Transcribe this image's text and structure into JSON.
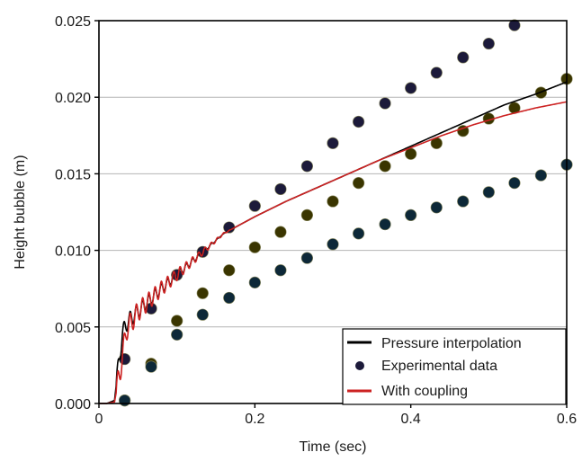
{
  "chart_data": {
    "type": "line",
    "xlabel": "Time (sec)",
    "ylabel": "Height bubble (m)",
    "xlim": [
      0,
      0.6
    ],
    "ylim": [
      0,
      0.025
    ],
    "x_ticks": [
      "0",
      "0.2",
      "0.4",
      "0.6"
    ],
    "y_ticks": [
      "0.000",
      "0.005",
      "0.010",
      "0.015",
      "0.020",
      "0.025"
    ],
    "grid": "horizontal",
    "legend_position": "bottom-right",
    "legend": [
      {
        "label": "Pressure interpolation",
        "style": "line",
        "color": "#000000"
      },
      {
        "label": "Experimental data",
        "style": "marker",
        "color": "#1c1a3a"
      },
      {
        "label": "With coupling",
        "style": "line",
        "color": "#cc2222"
      }
    ],
    "series": [
      {
        "name": "Pressure interpolation",
        "kind": "line",
        "color": "#000000",
        "oscillation": {
          "amplitude": 0.0006,
          "until": 0.16,
          "period": 0.008
        },
        "x": [
          0.0,
          0.01,
          0.02,
          0.025,
          0.03,
          0.035,
          0.04,
          0.05,
          0.06,
          0.07,
          0.08,
          0.1,
          0.12,
          0.14,
          0.16,
          0.2,
          0.24,
          0.28,
          0.32,
          0.36,
          0.4,
          0.44,
          0.48,
          0.52,
          0.56,
          0.6
        ],
        "y": [
          0.0,
          0.0,
          0.0002,
          0.0025,
          0.0045,
          0.0052,
          0.0055,
          0.006,
          0.0065,
          0.007,
          0.0075,
          0.0084,
          0.0093,
          0.0102,
          0.0111,
          0.0122,
          0.0132,
          0.0141,
          0.015,
          0.0159,
          0.0168,
          0.0177,
          0.0186,
          0.0195,
          0.0202,
          0.021
        ]
      },
      {
        "name": "With coupling",
        "kind": "line",
        "color": "#cc2222",
        "oscillation": {
          "amplitude": 0.0008,
          "until": 0.17,
          "period": 0.008
        },
        "x": [
          0.0,
          0.01,
          0.02,
          0.03,
          0.035,
          0.04,
          0.05,
          0.06,
          0.07,
          0.08,
          0.1,
          0.12,
          0.14,
          0.16,
          0.2,
          0.24,
          0.28,
          0.32,
          0.36,
          0.4,
          0.44,
          0.48,
          0.52,
          0.56,
          0.6
        ],
        "y": [
          0.0,
          0.0,
          0.0001,
          0.003,
          0.0048,
          0.0052,
          0.006,
          0.0065,
          0.007,
          0.0075,
          0.0084,
          0.0093,
          0.0102,
          0.0111,
          0.0122,
          0.0132,
          0.0141,
          0.015,
          0.0159,
          0.0167,
          0.0175,
          0.0182,
          0.0188,
          0.0193,
          0.0197
        ]
      },
      {
        "name": "Experimental data",
        "kind": "scatter",
        "groups": [
          {
            "color": "#1c1a3a",
            "x": [
              0.033,
              0.067,
              0.1,
              0.133,
              0.167,
              0.2,
              0.233,
              0.267,
              0.3,
              0.333,
              0.367,
              0.4,
              0.433,
              0.467,
              0.5,
              0.533
            ],
            "y": [
              0.0029,
              0.0062,
              0.0084,
              0.0099,
              0.0115,
              0.0129,
              0.014,
              0.0155,
              0.017,
              0.0184,
              0.0196,
              0.0206,
              0.0216,
              0.0226,
              0.0235,
              0.0247
            ]
          },
          {
            "color": "#3a3500",
            "x": [
              0.033,
              0.067,
              0.1,
              0.133,
              0.167,
              0.2,
              0.233,
              0.267,
              0.3,
              0.333,
              0.367,
              0.4,
              0.433,
              0.467,
              0.5,
              0.533,
              0.567,
              0.6
            ],
            "y": [
              0.0002,
              0.0026,
              0.0054,
              0.0072,
              0.0087,
              0.0102,
              0.0112,
              0.0123,
              0.0132,
              0.0144,
              0.0155,
              0.0163,
              0.017,
              0.0178,
              0.0186,
              0.0193,
              0.0203,
              0.0212
            ]
          },
          {
            "color": "#0d2838",
            "x": [
              0.033,
              0.067,
              0.1,
              0.133,
              0.167,
              0.2,
              0.233,
              0.267,
              0.3,
              0.333,
              0.367,
              0.4,
              0.433,
              0.467,
              0.5,
              0.533,
              0.567,
              0.6
            ],
            "y": [
              0.0002,
              0.0024,
              0.0045,
              0.0058,
              0.0069,
              0.0079,
              0.0087,
              0.0095,
              0.0104,
              0.0111,
              0.0117,
              0.0123,
              0.0128,
              0.0132,
              0.0138,
              0.0144,
              0.0149,
              0.0156
            ]
          }
        ]
      }
    ]
  }
}
